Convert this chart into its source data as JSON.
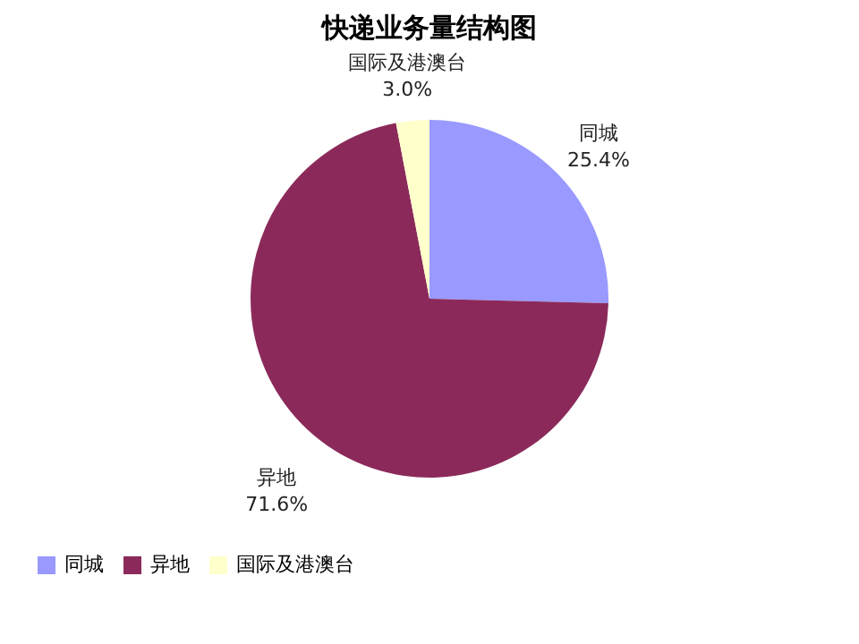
{
  "chart_data": {
    "type": "pie",
    "title": "快递业务量结构图",
    "categories": [
      "同城",
      "异地",
      "国际及港澳台"
    ],
    "values": [
      25.4,
      71.6,
      3.0
    ],
    "value_labels": [
      "25.4%",
      "71.6%",
      "3.0%"
    ],
    "colors": [
      "#9999ff",
      "#8b2a5a",
      "#ffffcc"
    ],
    "legend": "bottom"
  }
}
